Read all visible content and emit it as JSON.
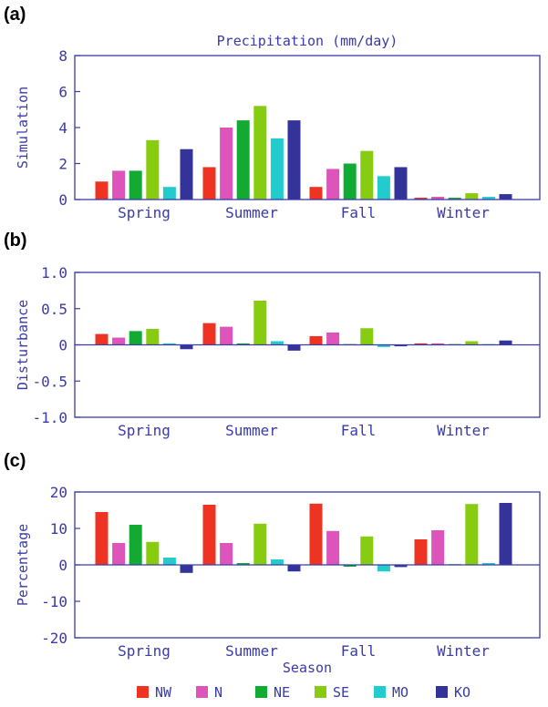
{
  "figure": {
    "axis_color": "#3a3aa8",
    "series_colors": {
      "NW": "#ee3322",
      "N": "#dd55bb",
      "NE": "#11aa33",
      "SE": "#88cc11",
      "MO": "#22cccc",
      "KO": "#333399"
    },
    "xlabel": "Season",
    "legend": {
      "position": "bottom",
      "entries": [
        "NW",
        "N",
        "NE",
        "SE",
        "MO",
        "KO"
      ]
    }
  },
  "chart_data": [
    {
      "panel_label": "(a)",
      "type": "bar",
      "title": "Precipitation (mm/day)",
      "ylabel": "Simulation",
      "xlabel": "",
      "categories": [
        "Spring",
        "Summer",
        "Fall",
        "Winter"
      ],
      "ylim": [
        0,
        8
      ],
      "yticks": [
        0,
        2,
        4,
        6,
        8
      ],
      "ytick_labels": [
        "0",
        "2",
        "4",
        "6",
        "8"
      ],
      "series": [
        {
          "name": "NW",
          "values": [
            1.0,
            1.8,
            0.7,
            0.1
          ]
        },
        {
          "name": "N",
          "values": [
            1.6,
            4.0,
            1.7,
            0.15
          ]
        },
        {
          "name": "NE",
          "values": [
            1.6,
            4.4,
            2.0,
            0.1
          ]
        },
        {
          "name": "SE",
          "values": [
            3.3,
            5.2,
            2.7,
            0.35
          ]
        },
        {
          "name": "MO",
          "values": [
            0.7,
            3.4,
            1.3,
            0.15
          ]
        },
        {
          "name": "KO",
          "values": [
            2.8,
            4.4,
            1.8,
            0.3
          ]
        }
      ]
    },
    {
      "panel_label": "(b)",
      "type": "bar",
      "title": "",
      "ylabel": "Disturbance",
      "xlabel": "",
      "categories": [
        "Spring",
        "Summer",
        "Fall",
        "Winter"
      ],
      "ylim": [
        -1.0,
        1.0
      ],
      "yticks": [
        -1.0,
        -0.5,
        0,
        0.5,
        1.0
      ],
      "ytick_labels": [
        "-1.0",
        "-0.5",
        "0",
        "0.5",
        "1.0"
      ],
      "series": [
        {
          "name": "NW",
          "values": [
            0.15,
            0.3,
            0.12,
            0.02
          ]
        },
        {
          "name": "N",
          "values": [
            0.1,
            0.25,
            0.17,
            0.02
          ]
        },
        {
          "name": "NE",
          "values": [
            0.19,
            0.02,
            0.01,
            0.01
          ]
        },
        {
          "name": "SE",
          "values": [
            0.22,
            0.61,
            0.23,
            0.05
          ]
        },
        {
          "name": "MO",
          "values": [
            0.02,
            0.05,
            -0.03,
            0.01
          ]
        },
        {
          "name": "KO",
          "values": [
            -0.06,
            -0.08,
            -0.02,
            0.06
          ]
        }
      ]
    },
    {
      "panel_label": "(c)",
      "type": "bar",
      "title": "",
      "ylabel": "Percentage",
      "xlabel": "Season",
      "categories": [
        "Spring",
        "Summer",
        "Fall",
        "Winter"
      ],
      "ylim": [
        -20,
        20
      ],
      "yticks": [
        -20,
        -10,
        0,
        10,
        20
      ],
      "ytick_labels": [
        "-20",
        "-10",
        "0",
        "10",
        "20"
      ],
      "series": [
        {
          "name": "NW",
          "values": [
            14.5,
            16.5,
            16.8,
            7.0
          ]
        },
        {
          "name": "N",
          "values": [
            6.0,
            6.0,
            9.3,
            9.5
          ]
        },
        {
          "name": "NE",
          "values": [
            11.0,
            0.5,
            -0.5,
            0.2
          ]
        },
        {
          "name": "SE",
          "values": [
            6.3,
            11.3,
            7.8,
            16.7
          ]
        },
        {
          "name": "MO",
          "values": [
            2.0,
            1.5,
            -1.8,
            0.5
          ]
        },
        {
          "name": "KO",
          "values": [
            -2.2,
            -1.8,
            -0.6,
            17.0
          ]
        }
      ]
    }
  ]
}
